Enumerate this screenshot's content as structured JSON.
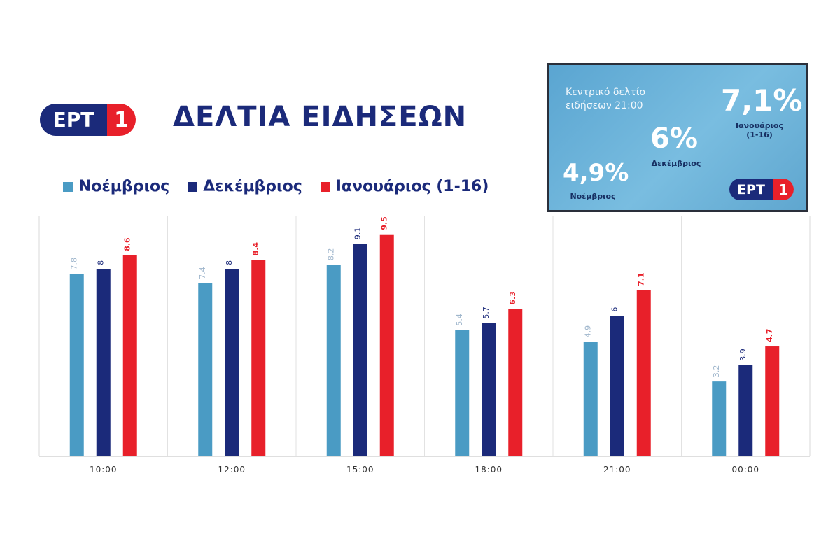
{
  "header": {
    "logo": {
      "ert": "ΕΡΤ",
      "one": "1"
    },
    "title": "ΔΕΛΤΙΑ ΕΙΔΗΣΕΩΝ"
  },
  "inset": {
    "caption": "Κεντρικό δελτίο ειδήσεων 21:00",
    "nov_value": "4,9%",
    "nov_label": "Νοέμβριος",
    "dec_value": "6%",
    "dec_label": "Δεκέμβριος",
    "jan_value": "7,1%",
    "jan_label": "Ιανουάριος (1-16)",
    "logo": {
      "ert": "ΕΡΤ",
      "one": "1"
    }
  },
  "colors": {
    "nov": "#4a9bc4",
    "dec": "#1b2a7a",
    "jan": "#e8202a",
    "brand_blue": "#1b2a7a",
    "brand_red": "#e8202a"
  },
  "chart_data": {
    "type": "bar",
    "title": "",
    "xlabel": "",
    "ylabel": "",
    "ylim": [
      0,
      10.3
    ],
    "grid": "vertical separators",
    "legend_position": "top-left",
    "categories": [
      "10:00",
      "12:00",
      "15:00",
      "18:00",
      "21:00",
      "00:00"
    ],
    "series": [
      {
        "name": "Νοέμβριος",
        "color": "#4a9bc4",
        "values": [
          7.8,
          7.4,
          8.2,
          5.4,
          4.9,
          3.2
        ],
        "labels": [
          "7.8",
          "7.4",
          "8.2",
          "5.4",
          "4.9",
          "3.2"
        ]
      },
      {
        "name": "Δεκέμβριος",
        "color": "#1b2a7a",
        "values": [
          8,
          8,
          9.1,
          5.7,
          6,
          3.9
        ],
        "labels": [
          "8",
          "8",
          "9.1",
          "5.7",
          "6",
          "3.9"
        ]
      },
      {
        "name": "Ιανουάριος (1-16)",
        "color": "#e8202a",
        "values": [
          8.6,
          8.4,
          9.5,
          6.3,
          7.1,
          4.7
        ],
        "labels": [
          "8.6",
          "8.4",
          "9.5",
          "6.3",
          "7.1",
          "4.7"
        ]
      }
    ]
  }
}
